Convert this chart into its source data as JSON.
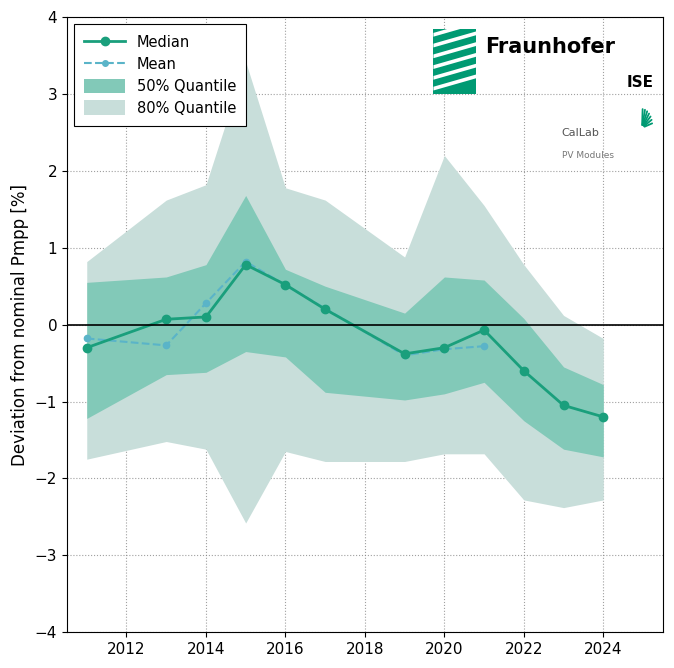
{
  "years_median": [
    2011,
    2013,
    2014,
    2015,
    2016,
    2017,
    2019,
    2020,
    2021,
    2022,
    2023,
    2024
  ],
  "median_vals": [
    -0.3,
    0.07,
    0.1,
    0.78,
    0.52,
    0.2,
    -0.38,
    -0.3,
    -0.07,
    -0.6,
    -1.05,
    -1.2
  ],
  "years_mean": [
    2011,
    2013,
    2014,
    2015,
    2019,
    2020,
    2021
  ],
  "mean_vals": [
    -0.18,
    -0.27,
    0.28,
    0.82,
    -0.4,
    -0.32,
    -0.28
  ],
  "x_band": [
    2011,
    2013,
    2014,
    2015,
    2016,
    2017,
    2019,
    2020,
    2021,
    2022,
    2023,
    2024
  ],
  "q50_upper": [
    0.55,
    0.62,
    0.78,
    1.68,
    0.72,
    0.5,
    0.15,
    0.62,
    0.58,
    0.08,
    -0.55,
    -0.78
  ],
  "q50_lower": [
    -1.22,
    -0.65,
    -0.62,
    -0.35,
    -0.42,
    -0.88,
    -0.98,
    -0.9,
    -0.75,
    -1.25,
    -1.62,
    -1.72
  ],
  "q80_upper": [
    0.82,
    1.62,
    1.82,
    3.42,
    1.78,
    1.62,
    0.88,
    2.2,
    1.55,
    0.78,
    0.12,
    -0.18
  ],
  "q80_lower": [
    -1.75,
    -1.52,
    -1.62,
    -2.58,
    -1.65,
    -1.78,
    -1.78,
    -1.68,
    -1.68,
    -2.28,
    -2.38,
    -2.28
  ],
  "median_color": "#1a9f7c",
  "mean_color": "#5ab4c8",
  "q50_color": "#82c9b8",
  "q80_color": "#c8deda",
  "ylabel": "Deviation from nominal Pmpp [%]",
  "ylim": [
    -4,
    4
  ],
  "xlim": [
    2010.5,
    2025.5
  ],
  "xticks": [
    2012,
    2014,
    2016,
    2018,
    2020,
    2022,
    2024
  ],
  "yticks": [
    -4,
    -3,
    -2,
    -1,
    0,
    1,
    2,
    3,
    4
  ],
  "fraunhofer_green": "#009a73",
  "callab_green": "#009a73"
}
